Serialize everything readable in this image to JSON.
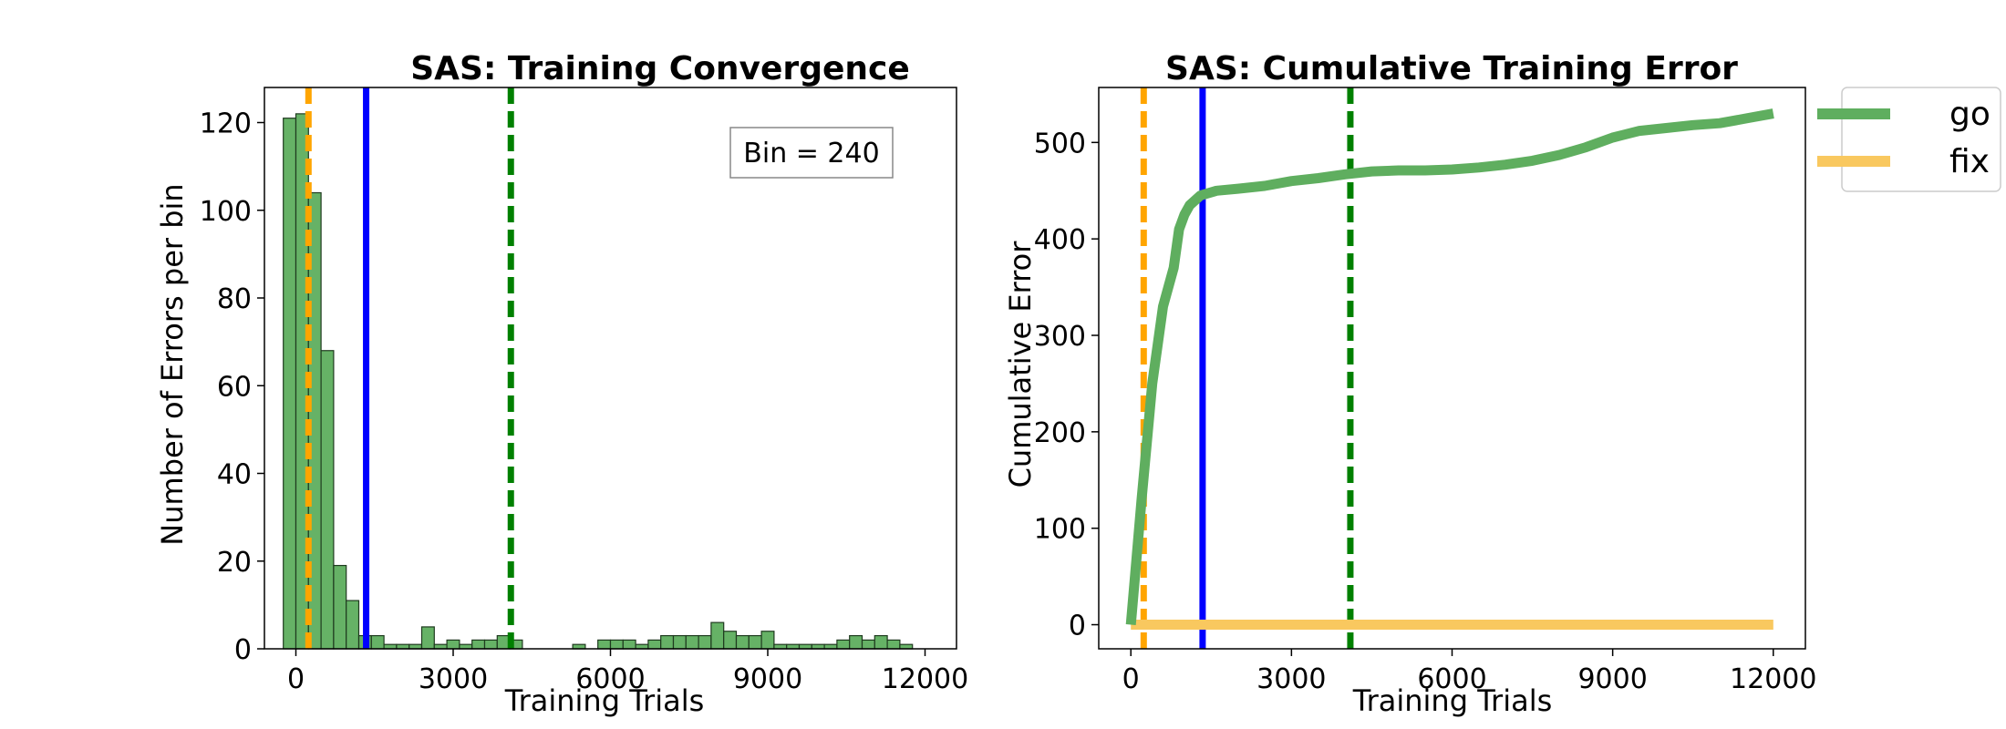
{
  "colors": {
    "bar_fill": "#66b266",
    "bar_edge": "#1f3a1f",
    "go_line": "#5fae5f",
    "fix_line": "#f9c85f",
    "orange_marker": "#ffa500",
    "blue_marker": "#0000ff",
    "green_marker": "#008000",
    "frame": "#000000"
  },
  "chart_data": [
    {
      "type": "bar",
      "title": "SAS: Training Convergence",
      "xlabel": "Training Trials",
      "ylabel": "Number of Errors per bin",
      "xlim": [
        -600,
        12600
      ],
      "ylim": [
        0,
        128
      ],
      "xticks": [
        0,
        3000,
        6000,
        9000,
        12000
      ],
      "yticks": [
        0,
        20,
        40,
        60,
        80,
        100,
        120
      ],
      "bin_width": 240,
      "bin_starts": [
        -240,
        0,
        240,
        480,
        720,
        960,
        1200,
        1440,
        1680,
        1920,
        2160,
        2400,
        2640,
        2880,
        3120,
        3360,
        3600,
        3840,
        4080,
        4320,
        4560,
        4800,
        5040,
        5280,
        5520,
        5760,
        6000,
        6240,
        6480,
        6720,
        6960,
        7200,
        7440,
        7680,
        7920,
        8160,
        8400,
        8640,
        8880,
        9120,
        9360,
        9600,
        9840,
        10080,
        10320,
        10560,
        10800,
        11040,
        11280,
        11520
      ],
      "values": [
        121,
        122,
        104,
        68,
        19,
        11,
        3,
        3,
        1,
        1,
        1,
        5,
        1,
        2,
        1,
        2,
        2,
        3,
        2,
        0,
        0,
        0,
        0,
        1,
        0,
        2,
        2,
        2,
        1,
        2,
        3,
        3,
        3,
        3,
        6,
        4,
        3,
        3,
        4,
        1,
        1,
        1,
        1,
        1,
        2,
        3,
        2,
        3,
        2,
        1
      ],
      "annotation": "Bin = 240",
      "vlines": [
        {
          "x": 240,
          "style": "dashed",
          "color": "#ffa500"
        },
        {
          "x": 1340,
          "style": "solid",
          "color": "#0000ff"
        },
        {
          "x": 4100,
          "style": "dashed",
          "color": "#008000"
        }
      ]
    },
    {
      "type": "line",
      "title": "SAS: Cumulative Training Error",
      "xlabel": "Training Trials",
      "ylabel": "Cumulative Error",
      "xlim": [
        -600,
        12600
      ],
      "ylim": [
        -25,
        557
      ],
      "xticks": [
        0,
        3000,
        6000,
        9000,
        12000
      ],
      "yticks": [
        0,
        100,
        200,
        300,
        400,
        500
      ],
      "legend_position": "outside-top-right",
      "series": [
        {
          "name": "go",
          "color": "#5fae5f",
          "x": [
            0,
            200,
            400,
            600,
            800,
            900,
            1000,
            1100,
            1300,
            1600,
            2000,
            2500,
            3000,
            3500,
            4000,
            4500,
            5000,
            5500,
            6000,
            6500,
            7000,
            7500,
            8000,
            8500,
            9000,
            9500,
            10000,
            10500,
            11000,
            11500,
            12000
          ],
          "y": [
            0,
            130,
            250,
            330,
            370,
            410,
            425,
            435,
            445,
            450,
            452,
            455,
            460,
            463,
            467,
            470,
            471,
            471,
            472,
            474,
            477,
            481,
            487,
            495,
            505,
            512,
            515,
            518,
            520,
            525,
            530
          ]
        },
        {
          "name": "fix",
          "color": "#f9c85f",
          "x": [
            0,
            12000
          ],
          "y": [
            0,
            0
          ]
        }
      ],
      "vlines": [
        {
          "x": 240,
          "style": "dashed",
          "color": "#ffa500"
        },
        {
          "x": 1340,
          "style": "solid",
          "color": "#0000ff"
        },
        {
          "x": 4100,
          "style": "dashed",
          "color": "#008000"
        }
      ]
    }
  ]
}
